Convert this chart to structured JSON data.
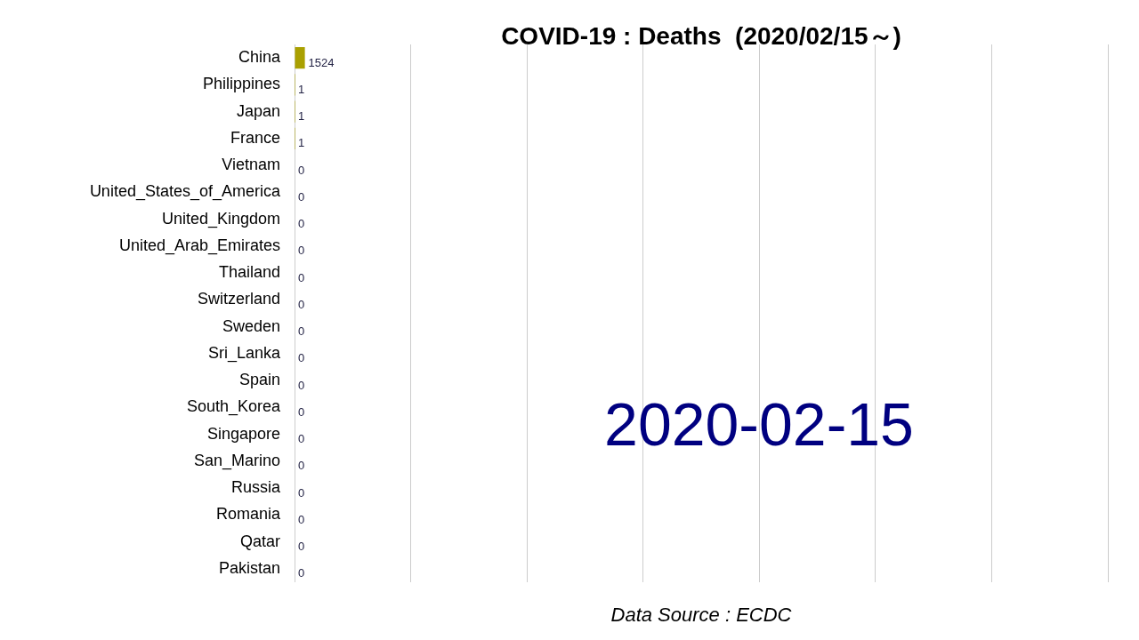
{
  "chart_data": {
    "type": "bar",
    "orientation": "horizontal",
    "title": "COVID-19 : Deaths  (2020/02/15～)",
    "categories": [
      "China",
      "Philippines",
      "Japan",
      "France",
      "Vietnam",
      "United_States_of_America",
      "United_Kingdom",
      "United_Arab_Emirates",
      "Thailand",
      "Switzerland",
      "Sweden",
      "Sri_Lanka",
      "Spain",
      "South_Korea",
      "Singapore",
      "San_Marino",
      "Russia",
      "Romania",
      "Qatar",
      "Pakistan"
    ],
    "values": [
      1524,
      1,
      1,
      1,
      0,
      0,
      0,
      0,
      0,
      0,
      0,
      0,
      0,
      0,
      0,
      0,
      0,
      0,
      0,
      0
    ],
    "color": "#aaa000",
    "tick_labels": "y",
    "legend": false,
    "data_labels": true,
    "annotations": [
      "2020-02-15",
      "Data Source : ECDC"
    ]
  }
}
